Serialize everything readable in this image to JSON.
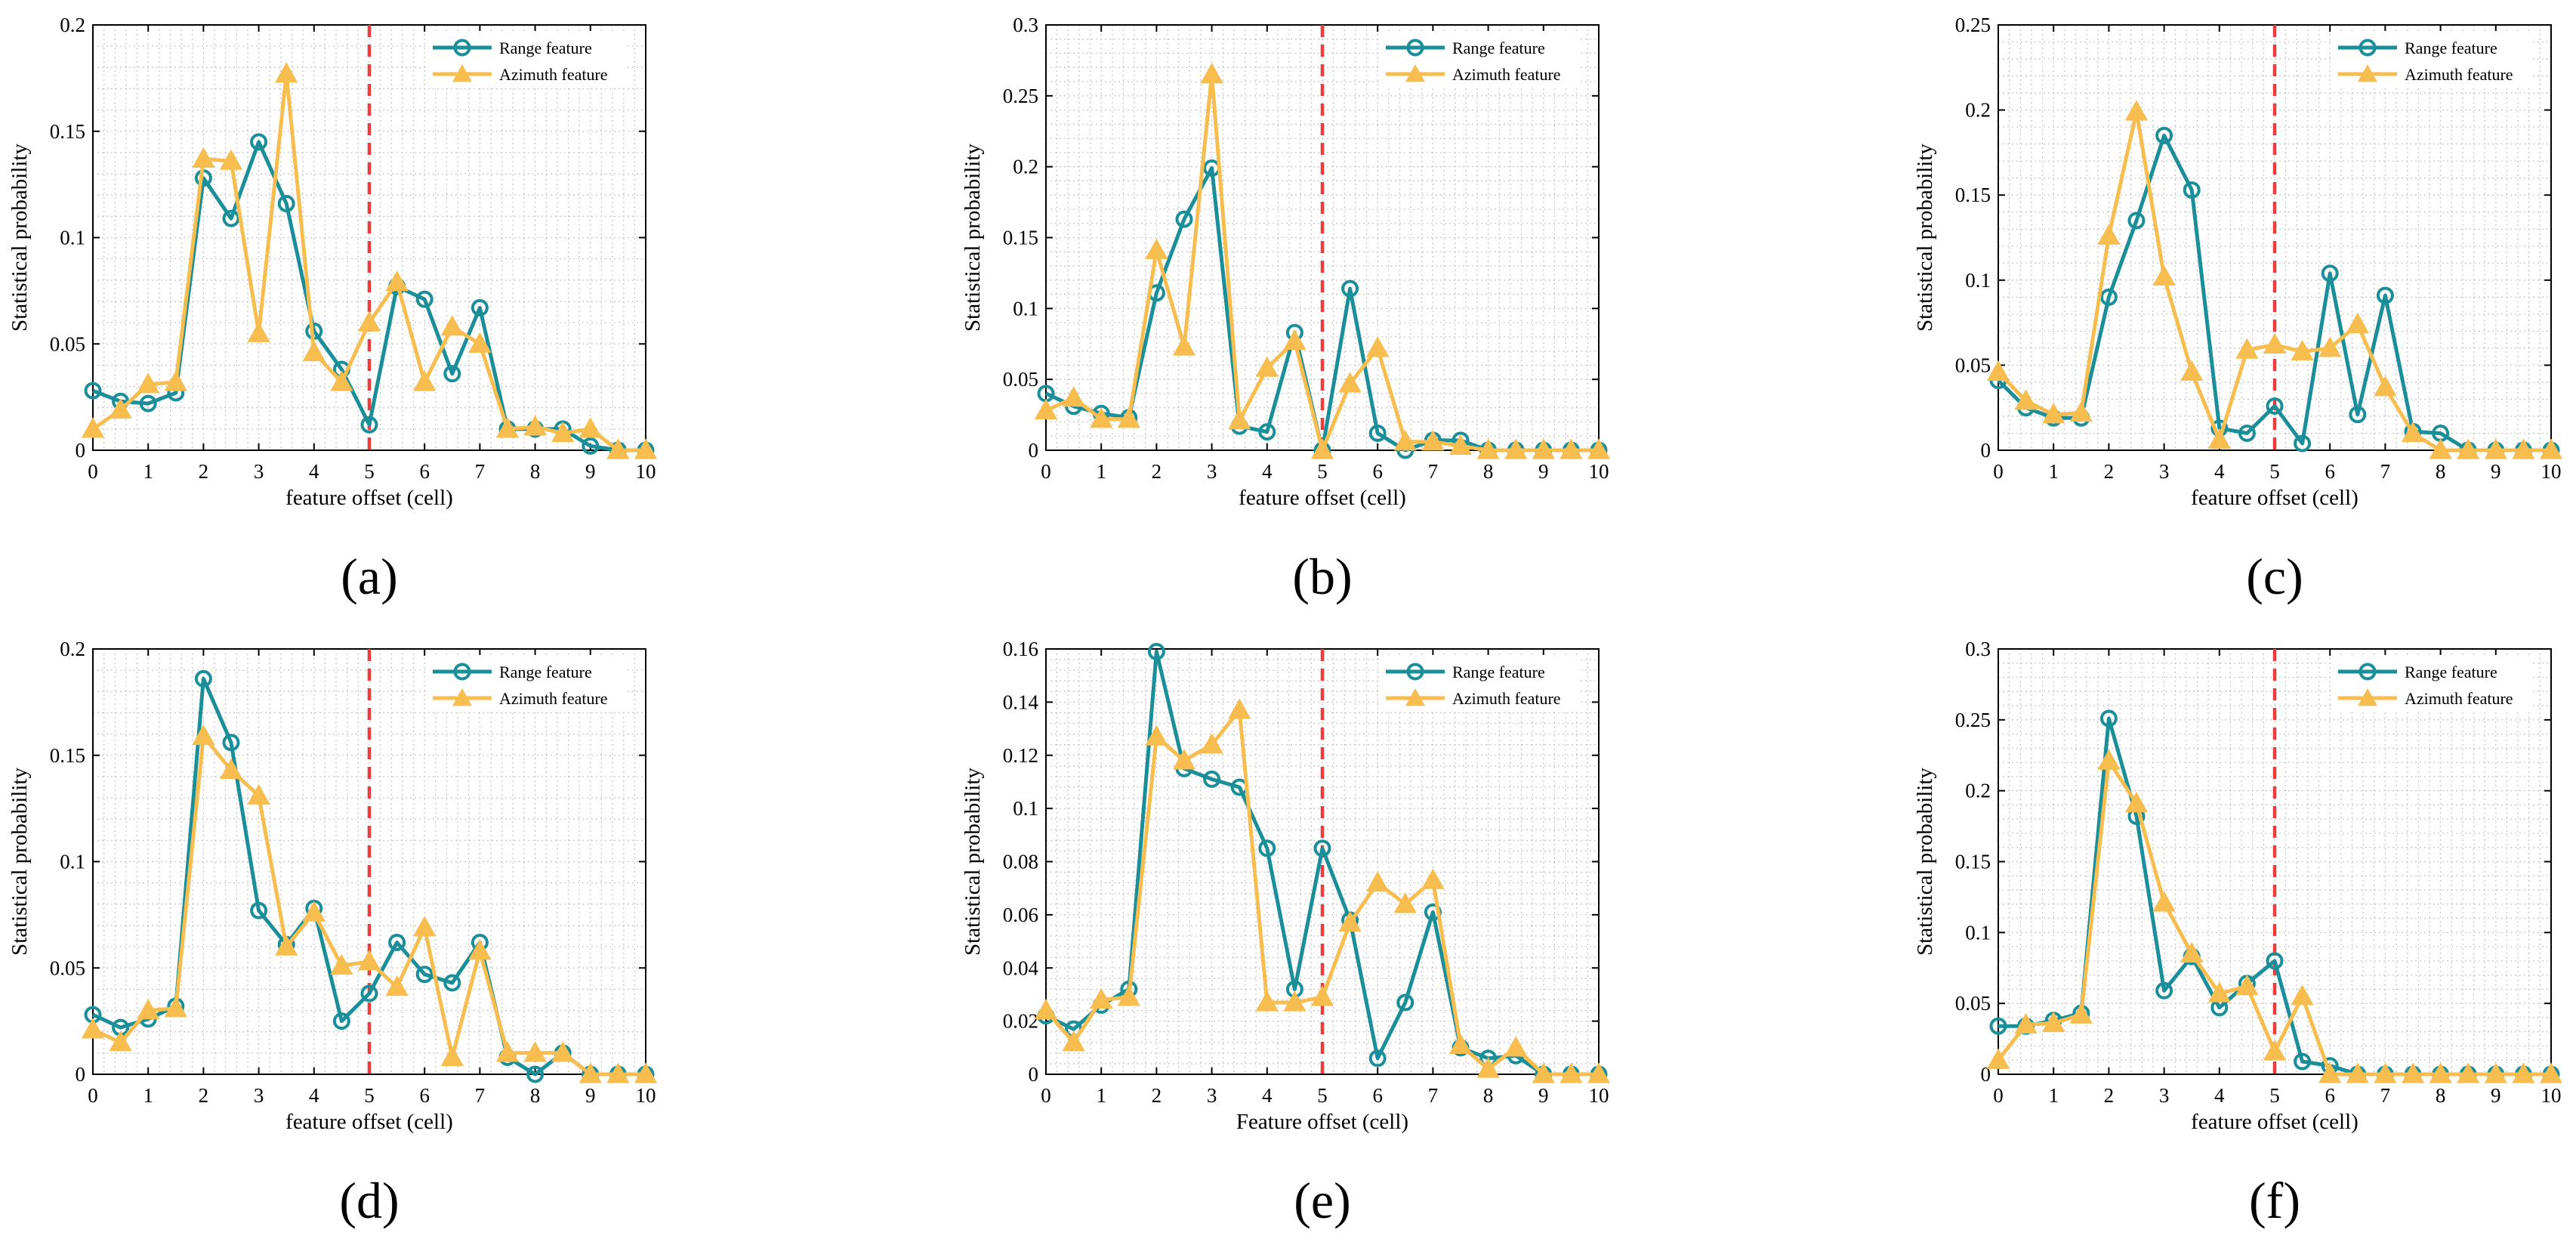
{
  "figure": {
    "panels_note": "2x3 grid of line charts comparing range and azimuth feature distributions",
    "colors": {
      "range": "#1a8f9a",
      "azimuth": "#f7bd4f",
      "ref_line": "#ee3b3b",
      "grid": "#c8c8c8",
      "axis": "#000000"
    }
  },
  "chart_data": [
    {
      "type": "line",
      "caption": "(a)",
      "xlabel": "feature offset (cell)",
      "ylabel": "Statistical probability",
      "xlim": [
        0,
        10
      ],
      "ylim": [
        0,
        0.2
      ],
      "xticks": [
        "0",
        "1",
        "2",
        "3",
        "4",
        "5",
        "6",
        "7",
        "8",
        "9",
        "10"
      ],
      "yticks": [
        "0",
        "0.05",
        "0.1",
        "0.15",
        "0.2"
      ],
      "ref_line_x": 5,
      "legend": [
        "Range feature",
        "Azimuth feature"
      ],
      "x": [
        0,
        0.5,
        1,
        1.5,
        2,
        2.5,
        3,
        3.5,
        4,
        4.5,
        5,
        5.5,
        6,
        6.5,
        7,
        7.5,
        8,
        8.5,
        9,
        9.5,
        10
      ],
      "series": [
        {
          "name": "Range feature",
          "values": [
            0.028,
            0.023,
            0.022,
            0.027,
            0.128,
            0.109,
            0.145,
            0.116,
            0.056,
            0.038,
            0.012,
            0.077,
            0.071,
            0.036,
            0.067,
            0.01,
            0.01,
            0.01,
            0.002,
            0,
            0
          ]
        },
        {
          "name": "Azimuth feature",
          "values": [
            0.01,
            0.019,
            0.031,
            0.032,
            0.137,
            0.136,
            0.055,
            0.177,
            0.046,
            0.032,
            0.06,
            0.079,
            0.032,
            0.058,
            0.05,
            0.01,
            0.011,
            0.008,
            0.01,
            0,
            0
          ]
        }
      ]
    },
    {
      "type": "line",
      "caption": "(b)",
      "xlabel": "feature offset (cell)",
      "ylabel": "Statistical probability",
      "xlim": [
        0,
        10
      ],
      "ylim": [
        0,
        0.3
      ],
      "xticks": [
        "0",
        "1",
        "2",
        "3",
        "4",
        "5",
        "6",
        "7",
        "8",
        "9",
        "10"
      ],
      "yticks": [
        "0",
        "0.05",
        "0.1",
        "0.15",
        "0.2",
        "0.25",
        "0.3"
      ],
      "ref_line_x": 5,
      "legend": [
        "Range feature",
        "Azimuth feature"
      ],
      "x": [
        0,
        0.5,
        1,
        1.5,
        2,
        2.5,
        3,
        3.5,
        4,
        4.5,
        5,
        5.5,
        6,
        6.5,
        7,
        7.5,
        8,
        8.5,
        9,
        9.5,
        10
      ],
      "series": [
        {
          "name": "Range feature",
          "values": [
            0.04,
            0.031,
            0.026,
            0.023,
            0.111,
            0.163,
            0.199,
            0.017,
            0.013,
            0.083,
            0,
            0.114,
            0.012,
            0,
            0.007,
            0.007,
            0,
            0,
            0,
            0,
            0
          ]
        },
        {
          "name": "Azimuth feature",
          "values": [
            0.028,
            0.037,
            0.022,
            0.022,
            0.141,
            0.073,
            0.265,
            0.021,
            0.058,
            0.077,
            0,
            0.047,
            0.072,
            0.006,
            0.006,
            0.003,
            0,
            0,
            0,
            0,
            0
          ]
        }
      ]
    },
    {
      "type": "line",
      "caption": "(c)",
      "xlabel": "feature offset (cell)",
      "ylabel": "Statistical probability",
      "xlim": [
        0,
        10
      ],
      "ylim": [
        0,
        0.25
      ],
      "xticks": [
        "0",
        "1",
        "2",
        "3",
        "4",
        "5",
        "6",
        "7",
        "8",
        "9",
        "10"
      ],
      "yticks": [
        "0",
        "0.05",
        "0.1",
        "0.15",
        "0.2",
        "0.25"
      ],
      "ref_line_x": 5,
      "legend": [
        "Range feature",
        "Azimuth feature"
      ],
      "x": [
        0,
        0.5,
        1,
        1.5,
        2,
        2.5,
        3,
        3.5,
        4,
        4.5,
        5,
        5.5,
        6,
        6.5,
        7,
        7.5,
        8,
        8.5,
        9,
        9.5,
        10
      ],
      "series": [
        {
          "name": "Range feature",
          "values": [
            0.041,
            0.025,
            0.019,
            0.019,
            0.09,
            0.135,
            0.185,
            0.153,
            0.013,
            0.01,
            0.026,
            0.004,
            0.104,
            0.021,
            0.091,
            0.011,
            0.01,
            0,
            0,
            0,
            0
          ]
        },
        {
          "name": "Azimuth feature",
          "values": [
            0.046,
            0.029,
            0.021,
            0.022,
            0.126,
            0.199,
            0.102,
            0.046,
            0.006,
            0.059,
            0.062,
            0.058,
            0.06,
            0.074,
            0.037,
            0.01,
            0,
            0,
            0,
            0,
            0
          ]
        }
      ]
    },
    {
      "type": "line",
      "caption": "(d)",
      "xlabel": "feature offset (cell)",
      "ylabel": "Statistical probability",
      "xlim": [
        0,
        10
      ],
      "ylim": [
        0,
        0.2
      ],
      "xticks": [
        "0",
        "1",
        "2",
        "3",
        "4",
        "5",
        "6",
        "7",
        "8",
        "9",
        "10"
      ],
      "yticks": [
        "0",
        "0.05",
        "0.1",
        "0.15",
        "0.2"
      ],
      "ref_line_x": 5,
      "legend": [
        "Range feature",
        "Azimuth feature"
      ],
      "x": [
        0,
        0.5,
        1,
        1.5,
        2,
        2.5,
        3,
        3.5,
        4,
        4.5,
        5,
        5.5,
        6,
        6.5,
        7,
        7.5,
        8,
        8.5,
        9,
        9.5,
        10
      ],
      "series": [
        {
          "name": "Range feature",
          "values": [
            0.028,
            0.022,
            0.026,
            0.032,
            0.186,
            0.156,
            0.077,
            0.061,
            0.078,
            0.025,
            0.038,
            0.062,
            0.047,
            0.043,
            0.062,
            0.008,
            0,
            0.01,
            0,
            0,
            0
          ]
        },
        {
          "name": "Azimuth feature",
          "values": [
            0.021,
            0.015,
            0.03,
            0.031,
            0.159,
            0.143,
            0.131,
            0.06,
            0.076,
            0.051,
            0.053,
            0.041,
            0.069,
            0.008,
            0.058,
            0.01,
            0.01,
            0.01,
            0,
            0,
            0
          ]
        }
      ]
    },
    {
      "type": "line",
      "caption": "(e)",
      "xlabel": "Feature offset (cell)",
      "ylabel": "Statistical probability",
      "xlim": [
        0,
        10
      ],
      "ylim": [
        0,
        0.16
      ],
      "xticks": [
        "0",
        "1",
        "2",
        "3",
        "4",
        "5",
        "6",
        "7",
        "8",
        "9",
        "10"
      ],
      "yticks": [
        "0",
        "0.02",
        "0.04",
        "0.06",
        "0.08",
        "0.1",
        "0.12",
        "0.14",
        "0.16"
      ],
      "ref_line_x": 5,
      "legend": [
        "Range feature",
        "Azimuth feature"
      ],
      "x": [
        0,
        0.5,
        1,
        1.5,
        2,
        2.5,
        3,
        3.5,
        4,
        4.5,
        5,
        5.5,
        6,
        6.5,
        7,
        7.5,
        8,
        8.5,
        9,
        9.5,
        10
      ],
      "series": [
        {
          "name": "Range feature",
          "values": [
            0.022,
            0.017,
            0.026,
            0.032,
            0.159,
            0.115,
            0.111,
            0.108,
            0.085,
            0.032,
            0.085,
            0.058,
            0.006,
            0.027,
            0.061,
            0.01,
            0.006,
            0.007,
            0,
            0,
            0
          ]
        },
        {
          "name": "Azimuth feature",
          "values": [
            0.024,
            0.012,
            0.028,
            0.029,
            0.127,
            0.118,
            0.124,
            0.137,
            0.027,
            0.027,
            0.029,
            0.057,
            0.072,
            0.064,
            0.073,
            0.011,
            0.002,
            0.01,
            0,
            0,
            0
          ]
        }
      ]
    },
    {
      "type": "line",
      "caption": "(f)",
      "xlabel": "feature offset (cell)",
      "ylabel": "Statistical probability",
      "xlim": [
        0,
        10
      ],
      "ylim": [
        0,
        0.3
      ],
      "xticks": [
        "0",
        "1",
        "2",
        "3",
        "4",
        "5",
        "6",
        "7",
        "8",
        "9",
        "10"
      ],
      "yticks": [
        "0",
        "0.05",
        "0.1",
        "0.15",
        "0.2",
        "0.25",
        "0.3"
      ],
      "ref_line_x": 5,
      "legend": [
        "Range feature",
        "Azimuth feature"
      ],
      "x": [
        0,
        0.5,
        1,
        1.5,
        2,
        2.5,
        3,
        3.5,
        4,
        4.5,
        5,
        5.5,
        6,
        6.5,
        7,
        7.5,
        8,
        8.5,
        9,
        9.5,
        10
      ],
      "series": [
        {
          "name": "Range feature",
          "values": [
            0.034,
            0.034,
            0.038,
            0.043,
            0.251,
            0.182,
            0.059,
            0.083,
            0.047,
            0.064,
            0.08,
            0.009,
            0.006,
            0,
            0,
            0,
            0,
            0,
            0,
            0,
            0
          ]
        },
        {
          "name": "Azimuth feature",
          "values": [
            0.01,
            0.035,
            0.036,
            0.042,
            0.221,
            0.191,
            0.121,
            0.085,
            0.057,
            0.062,
            0.016,
            0.055,
            0,
            0,
            0,
            0,
            0,
            0,
            0,
            0,
            0
          ]
        }
      ]
    }
  ]
}
